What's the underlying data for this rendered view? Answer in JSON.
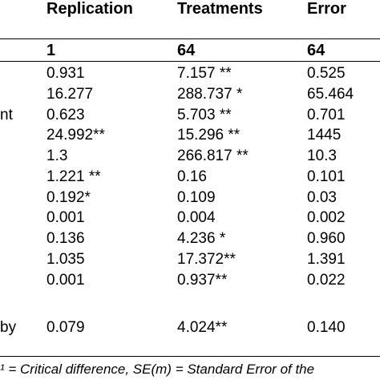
{
  "headers": {
    "replication": "Replication",
    "treatments": "Treatments",
    "error": "Error"
  },
  "df_row": {
    "replication": "1",
    "treatments": "64",
    "error": "64"
  },
  "rows": [
    {
      "label": "",
      "replication": "0.931",
      "treatments": "7.157 **",
      "error": "0.525"
    },
    {
      "label": "",
      "replication": "16.277",
      "treatments": "288.737 *",
      "error": "65.464"
    },
    {
      "label": "nt",
      "replication": "0.623",
      "treatments": "5.703 **",
      "error": "0.701"
    },
    {
      "label": "",
      "replication": "24.992**",
      "treatments": "15.296 **",
      "error": "1445"
    },
    {
      "label": "",
      "replication": "1.3",
      "treatments": "266.817 **",
      "error": "10.3"
    },
    {
      "label": "",
      "replication": "1.221 **",
      "treatments": "0.16",
      "error": "0.101"
    },
    {
      "label": "",
      "replication": "0.192*",
      "treatments": "0.109",
      "error": "0.03"
    },
    {
      "label": "",
      "replication": "0.001",
      "treatments": "0.004",
      "error": "0.002"
    },
    {
      "label": "",
      "replication": "0.136",
      "treatments": "4.236 *",
      "error": "0.960"
    },
    {
      "label": "",
      "replication": "1.035",
      "treatments": "17.372**",
      "error": "1.391"
    },
    {
      "label": "",
      "replication": "0.001",
      "treatments": "0.937**",
      "error": "0.022"
    },
    {
      "label": "by",
      "replication": "0.079",
      "treatments": "4.024**",
      "error": "0.140"
    }
  ],
  "footnote": "¹ = Critical difference, SE(m) = Standard Error of the"
}
